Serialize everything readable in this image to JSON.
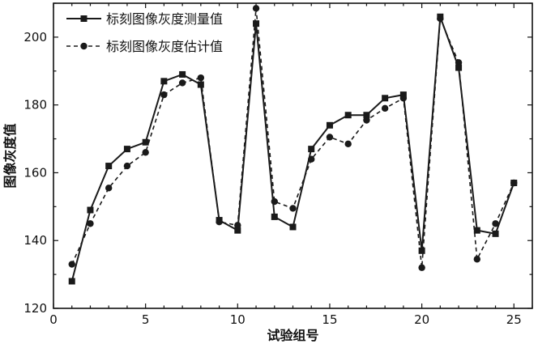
{
  "chart_data": {
    "type": "line",
    "xlabel": "试验组号",
    "ylabel": "图像灰度值",
    "xlim": [
      0,
      26
    ],
    "ylim": [
      120,
      210
    ],
    "xticks": [
      0,
      5,
      10,
      15,
      20,
      25
    ],
    "yticks": [
      120,
      140,
      160,
      180,
      200
    ],
    "grid": false,
    "legend_position": "top-left",
    "x": [
      1,
      2,
      3,
      4,
      5,
      6,
      7,
      8,
      9,
      10,
      11,
      12,
      13,
      14,
      15,
      16,
      17,
      18,
      19,
      20,
      21,
      22,
      23,
      24,
      25
    ],
    "series": [
      {
        "name": "标刻图像灰度测量值",
        "style": "solid",
        "marker": "square",
        "color": "#1a1a1a",
        "values": [
          128,
          149,
          162,
          167,
          169,
          187,
          189,
          186,
          146,
          143,
          204,
          147,
          144,
          167,
          174,
          177,
          177,
          182,
          183,
          137,
          206,
          191,
          143,
          142,
          157
        ]
      },
      {
        "name": "标刻图像灰度估计值",
        "style": "dashed",
        "marker": "circle",
        "color": "#1a1a1a",
        "values": [
          133,
          145,
          155.5,
          162,
          166,
          183,
          186.5,
          188,
          145.5,
          144.5,
          208.5,
          151.5,
          149.5,
          164,
          170.5,
          168.5,
          175.5,
          179,
          182,
          132,
          205.5,
          192.5,
          134.5,
          145,
          157
        ]
      }
    ]
  }
}
